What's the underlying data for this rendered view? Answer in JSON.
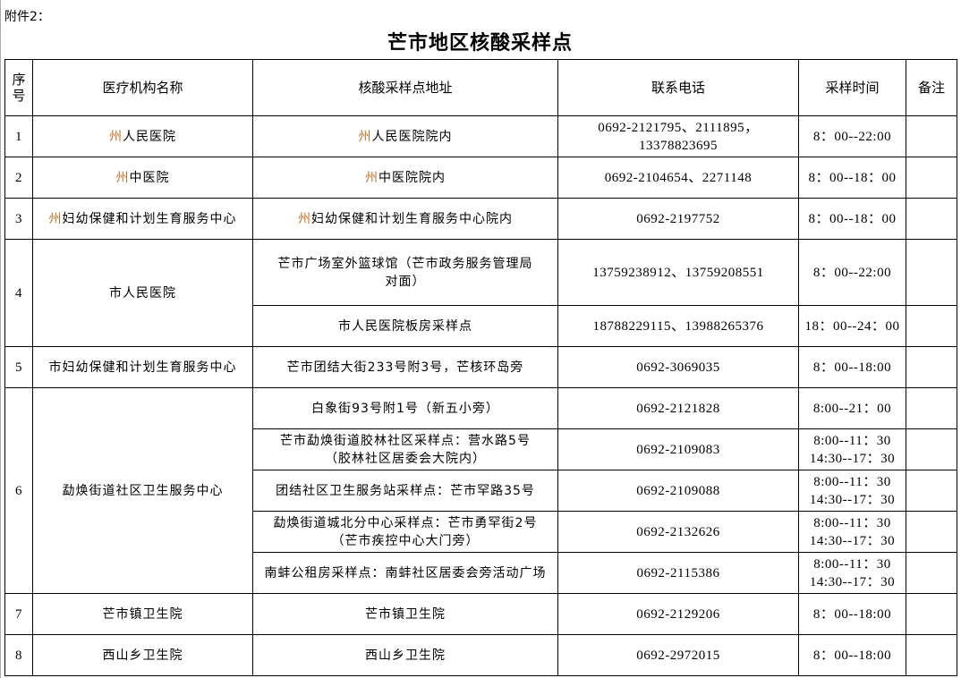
{
  "attachment_label": "附件2：",
  "title": "芒市地区核酸采样点",
  "headers": {
    "no": "序号",
    "institution": "医疗机构名称",
    "address": "核酸采样点地址",
    "phone": "联系电话",
    "time": "采样时间",
    "note": "备注"
  },
  "highlight_color": "#c0702a",
  "institutions": [
    {
      "no": "1",
      "name": "州人民医院",
      "highlight_first_char": true,
      "sites": [
        {
          "address": "州人民医院院内",
          "highlight_first_char": true,
          "phone": "0692-2121795、2111895，\n13378823695",
          "time": "8：00--22:00",
          "note": ""
        }
      ]
    },
    {
      "no": "2",
      "name": "州中医院",
      "highlight_first_char": true,
      "sites": [
        {
          "address": "州中医院院内",
          "highlight_first_char": true,
          "phone": "0692-2104654、2271148",
          "time": "8：00--18：00",
          "note": ""
        }
      ]
    },
    {
      "no": "3",
      "name": "州妇幼保健和计划生育服务中心",
      "highlight_first_char": true,
      "sites": [
        {
          "address": "州妇幼保健和计划生育服务中心院内",
          "highlight_first_char": true,
          "phone": "0692-2197752",
          "time": "8：00--18：00",
          "note": ""
        }
      ]
    },
    {
      "no": "4",
      "name": "市人民医院",
      "sites": [
        {
          "address": "芒市广场室外篮球馆（芒市政务服务管理局\n对面）",
          "phone": "13759238912、13759208551",
          "time": "8：00--22:00",
          "note": "",
          "tall": true
        },
        {
          "address": "市人民医院板房采样点",
          "phone": "18788229115、13988265376",
          "time": "18：00--24：00",
          "note": ""
        }
      ]
    },
    {
      "no": "5",
      "name": "市妇幼保健和计划生育服务中心",
      "sites": [
        {
          "address": "芒市团结大街233号附3号，芒核环岛旁",
          "phone": "0692-3069035",
          "time": "8：00--18:00",
          "note": ""
        }
      ]
    },
    {
      "no": "6",
      "name": "勐焕街道社区卫生服务中心",
      "sites": [
        {
          "address": "白象街93号附1号（新五小旁）",
          "phone": "0692-2121828",
          "time": "8:00--21：00",
          "note": ""
        },
        {
          "address": "芒市勐焕街道胶林社区采样点：营水路5号\n（胶林社区居委会大院内）",
          "phone": "0692-2109083",
          "time": "8:00--11：30\n14:30--17：30",
          "note": ""
        },
        {
          "address": "团结社区卫生服务站采样点：芒市罕路35号",
          "phone": "0692-2109088",
          "time": "8:00--11：30\n14:30--17：30",
          "note": ""
        },
        {
          "address": "勐焕街道城北分中心采样点：芒市勇罕街2号\n（芒市疾控中心大门旁）",
          "phone": "0692-2132626",
          "time": "8:00--11：30\n14:30--17：30",
          "note": ""
        },
        {
          "address": "南蚌公租房采样点：南蚌社区居委会旁活动广场",
          "phone": "0692-2115386",
          "time": "8:00--11：30\n14:30--17：30",
          "note": ""
        }
      ]
    },
    {
      "no": "7",
      "name": "芒市镇卫生院",
      "sites": [
        {
          "address": "芒市镇卫生院",
          "phone": "0692-2129206",
          "time": "8：00--18:00",
          "note": ""
        }
      ]
    },
    {
      "no": "8",
      "name": "西山乡卫生院",
      "sites": [
        {
          "address": "西山乡卫生院",
          "phone": "0692-2972015",
          "time": "8：00--18:00",
          "note": ""
        }
      ]
    }
  ]
}
